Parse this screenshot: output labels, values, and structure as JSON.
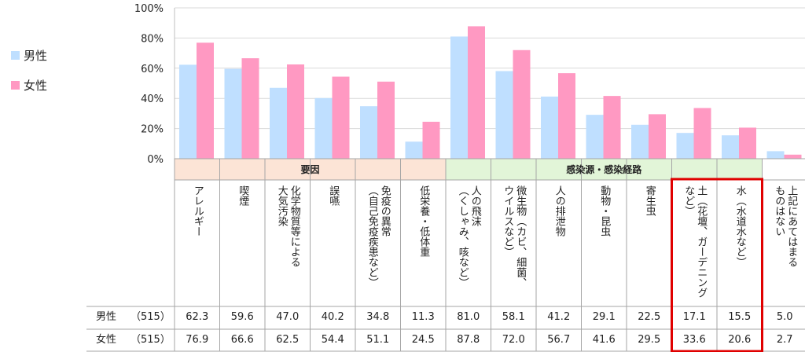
{
  "chart_data": {
    "type": "bar",
    "y_ticks": [
      "100%",
      "80%",
      "60%",
      "40%",
      "20%",
      "0%"
    ],
    "ylim": [
      0,
      100
    ],
    "legend": [
      {
        "name": "男性",
        "color": "#bfdfff"
      },
      {
        "name": "女性",
        "color": "#ff99c2"
      }
    ],
    "groups": [
      {
        "label": "要因",
        "count": 6,
        "color": "#fce4d6"
      },
      {
        "label": "感染源・感染経路",
        "count": 7,
        "color": "#e2f5d8"
      },
      {
        "label": "",
        "count": 1,
        "color": "#ffffff"
      }
    ],
    "categories": [
      "アレルギー",
      "喫煙",
      "化学物質等による\n大気汚染",
      "誤嚥",
      "免疫の異常\n（自己免疫疾患など）",
      "低栄養・低体重",
      "人の飛沫\n（くしゃみ、咳など）",
      "微生物（カビ、細菌、\nウイルスなど）",
      "人の排泄物",
      "動物・昆虫",
      "寄生虫",
      "土（花壇、ガーデニング\nなど）",
      "水（水道水など）",
      "上記にあてはまる\nものはない"
    ],
    "series": [
      {
        "name": "男性",
        "n": "（515）",
        "values": [
          62.3,
          59.6,
          47.0,
          40.2,
          34.8,
          11.3,
          81.0,
          58.1,
          41.2,
          29.1,
          22.5,
          17.1,
          15.5,
          5.0
        ],
        "labels": [
          "62.3",
          "59.6",
          "47.0",
          "40.2",
          "34.8",
          "11.3",
          "81.0",
          "58.1",
          "41.2",
          "29.1",
          "22.5",
          "17.1",
          "15.5",
          "5.0"
        ]
      },
      {
        "name": "女性",
        "n": "（515）",
        "values": [
          76.9,
          66.6,
          62.5,
          54.4,
          51.1,
          24.5,
          87.8,
          72.0,
          56.7,
          41.6,
          29.5,
          33.6,
          20.6,
          2.7
        ],
        "labels": [
          "76.9",
          "66.6",
          "62.5",
          "54.4",
          "51.1",
          "24.5",
          "87.8",
          "72.0",
          "56.7",
          "41.6",
          "29.5",
          "33.6",
          "20.6",
          "2.7"
        ]
      }
    ],
    "highlight": {
      "from": 11,
      "to": 12,
      "color": "#e00000"
    }
  }
}
